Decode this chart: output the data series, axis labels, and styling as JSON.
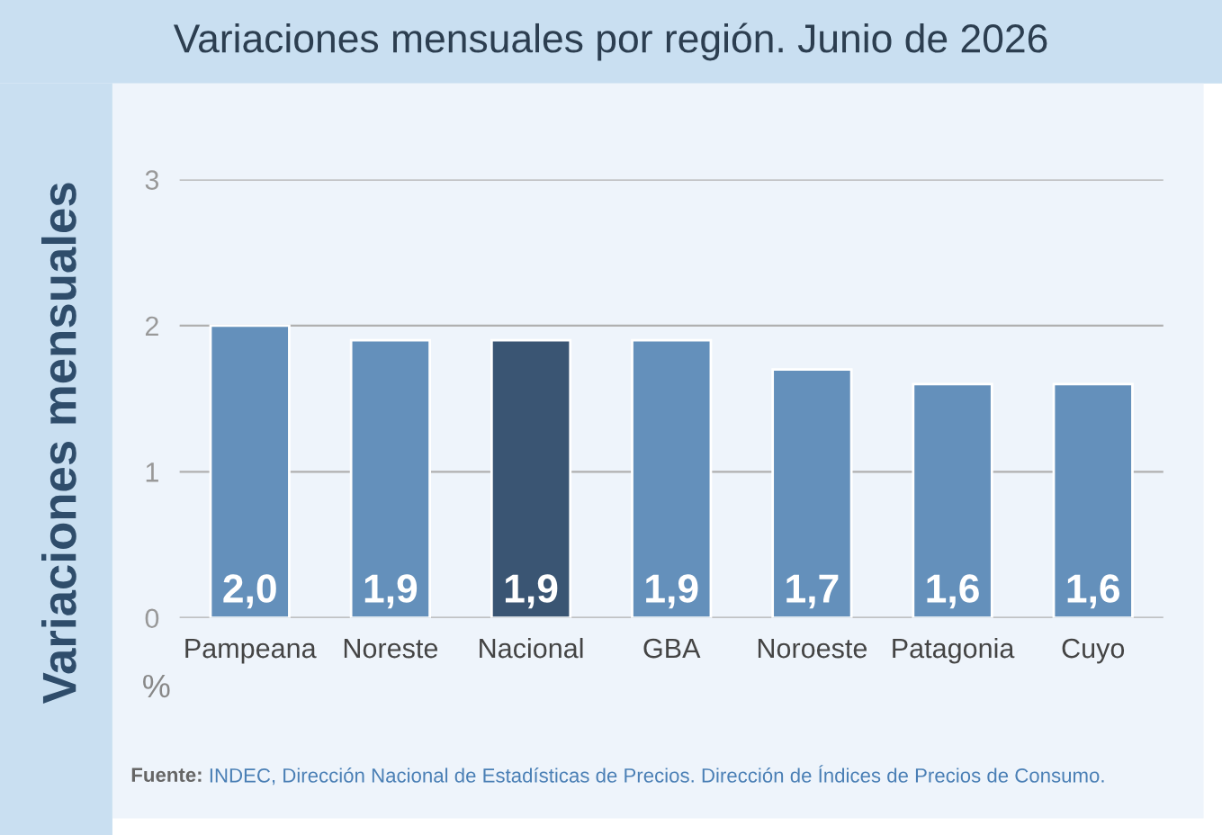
{
  "chart_data": {
    "type": "bar",
    "title": "Variaciones mensuales por región. Junio de 2026",
    "ylabel": "Variaciones mensuales",
    "categories": [
      "Pampeana",
      "Noreste",
      "Nacional",
      "GBA",
      "Noroeste",
      "Patagonia",
      "Cuyo"
    ],
    "values": [
      2.0,
      1.9,
      1.9,
      1.9,
      1.7,
      1.6,
      1.6
    ],
    "value_labels": [
      "2,0",
      "1,9",
      "1,9",
      "1,9",
      "1,7",
      "1,6",
      "1,6"
    ],
    "colors": [
      "#6490bb",
      "#6490bb",
      "#3a5573",
      "#6490bb",
      "#6490bb",
      "#6490bb",
      "#6490bb"
    ],
    "ylim": [
      0,
      3
    ],
    "yticks": [
      0,
      1,
      2,
      3
    ],
    "grid": "y",
    "annotations": [
      "%",
      "Fuente: INDEC, Dirección Nacional de Estadísticas de Precios. Dirección de Índices de Precios de Consumo."
    ]
  }
}
